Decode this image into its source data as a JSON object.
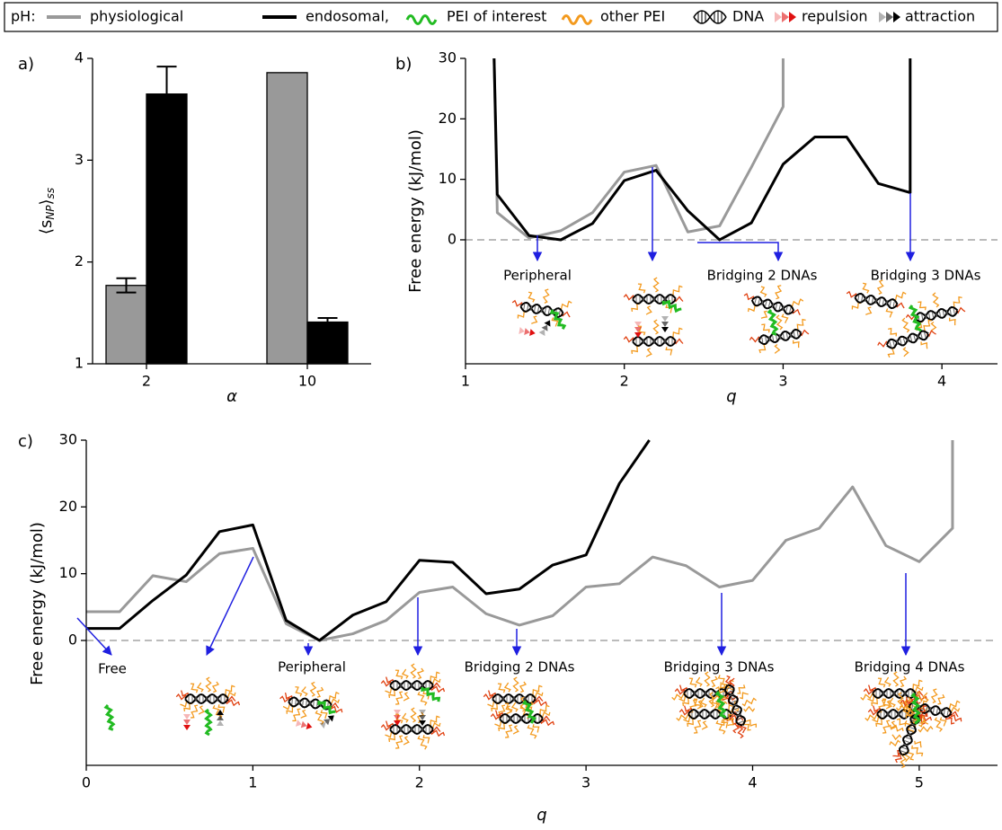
{
  "legend": {
    "title": "pH:",
    "items": [
      "PEI of interest",
      "other PEI",
      "DNA",
      "repulsion",
      "attraction"
    ]
  },
  "chart_data": [
    {
      "type": "bar",
      "panel": "a)",
      "xlabel": "α",
      "ylabel": [
        "⟨s",
        "NP",
        "⟩",
        "ss"
      ],
      "categories": [
        "2",
        "10"
      ],
      "series": [
        {
          "name": "physiological",
          "color": "#999999",
          "values": [
            1.77,
            3.86
          ],
          "errors": [
            0.07,
            null
          ]
        },
        {
          "name": "endosomal,",
          "color": "#000000",
          "values": [
            3.65,
            1.41
          ],
          "errors": [
            0.27,
            0.04
          ]
        }
      ],
      "ylim": [
        1,
        4
      ],
      "yticks": [
        1,
        2,
        3,
        4
      ]
    },
    {
      "type": "line",
      "panel": "b)",
      "xlabel": "q",
      "ylabel": "Free energy (kJ/mol)",
      "xlim": [
        1,
        4.35
      ],
      "ylim": [
        -20.5,
        30
      ],
      "xticks": [
        1,
        2,
        3,
        4
      ],
      "yticks": [
        0,
        10,
        20,
        30
      ],
      "reference_line": 0,
      "annotations": [
        "Peripheral",
        "Bridging 2 DNAs",
        "Bridging 3 DNAs"
      ],
      "series": [
        {
          "color": "#999999",
          "x": [
            1.18,
            1.2,
            1.4,
            1.6,
            1.8,
            2.0,
            2.2,
            2.4,
            2.6,
            2.8,
            3.0,
            3.0
          ],
          "values": [
            30,
            4.5,
            0.3,
            1.5,
            4.5,
            11.2,
            12.3,
            1.3,
            2.3,
            12,
            22,
            30
          ]
        },
        {
          "color": "#000000",
          "x": [
            1.18,
            1.2,
            1.4,
            1.6,
            1.8,
            2.0,
            2.2,
            2.4,
            2.6,
            2.8,
            3.0,
            3.2,
            3.4,
            3.6,
            3.8,
            3.8
          ],
          "values": [
            30,
            7.5,
            0.7,
            0,
            2.7,
            9.8,
            11.5,
            4.8,
            0,
            2.8,
            12.5,
            17,
            17,
            9.3,
            7.8,
            30
          ]
        }
      ]
    },
    {
      "type": "line",
      "panel": "c)",
      "xlabel": "q",
      "ylabel": "Free energy (kJ/mol)",
      "xlim": [
        0,
        5.47
      ],
      "ylim": [
        -18.7,
        30
      ],
      "xticks": [
        0,
        1,
        2,
        3,
        4,
        5
      ],
      "yticks": [
        0,
        10,
        20,
        30
      ],
      "reference_line": 0,
      "annotations": [
        "Free",
        "Peripheral",
        "Bridging 2 DNAs",
        "Bridging 3 DNAs",
        "Bridging 4 DNAs"
      ],
      "series": [
        {
          "color": "#999999",
          "x": [
            0,
            0.2,
            0.4,
            0.6,
            0.8,
            1.0,
            1.2,
            1.4,
            1.6,
            1.8,
            2.0,
            2.2,
            2.4,
            2.6,
            2.8,
            3.0,
            3.2,
            3.4,
            3.6,
            3.8,
            4.0,
            4.2,
            4.4,
            4.6,
            4.8,
            5.0,
            5.2,
            5.2
          ],
          "values": [
            4.3,
            4.3,
            9.7,
            8.8,
            13,
            13.8,
            2.5,
            0,
            1,
            3,
            7.2,
            8,
            4,
            2.3,
            3.7,
            8,
            8.5,
            12.5,
            11.2,
            8,
            9,
            15,
            16.8,
            23,
            14.2,
            11.8,
            16.8,
            30
          ]
        },
        {
          "color": "#000000",
          "x": [
            0,
            0.2,
            0.4,
            0.6,
            0.8,
            1.0,
            1.2,
            1.4,
            1.6,
            1.8,
            2.0,
            2.2,
            2.4,
            2.6,
            2.8,
            3.0,
            3.2,
            3.38
          ],
          "values": [
            1.8,
            1.8,
            6,
            9.8,
            16.3,
            17.3,
            3,
            0,
            3.8,
            5.8,
            12,
            11.7,
            7,
            7.7,
            11.3,
            12.8,
            23.5,
            30
          ]
        }
      ]
    }
  ]
}
